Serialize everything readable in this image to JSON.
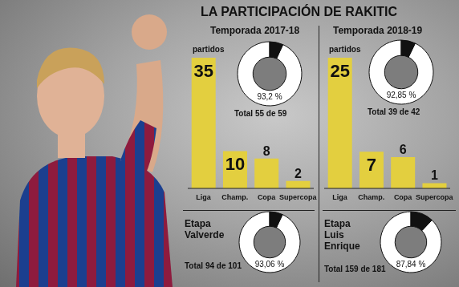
{
  "title": "LA PARTICIPACIÓN DE RAKITIC",
  "chart_data": [
    {
      "type": "bar",
      "title": "Temporada 2017-18",
      "ylabel": "partidos",
      "categories": [
        "Liga",
        "Champ.",
        "Copa",
        "Supercopa"
      ],
      "values": [
        35,
        10,
        8,
        2
      ],
      "color": "#e3cf3f",
      "ylim": [
        0,
        35
      ],
      "data_labels": true,
      "tick_labels": "x"
    },
    {
      "type": "pie",
      "subtitle": "Total 55 de 59",
      "values": [
        93.2,
        6.8
      ],
      "colors": [
        "#ffffff",
        "#111111"
      ],
      "value_labels": [
        "93,2 %",
        null
      ]
    },
    {
      "type": "bar",
      "title": "Temporada 2018-19",
      "ylabel": "partidos",
      "categories": [
        "Liga",
        "Champ.",
        "Copa",
        "Supercopa"
      ],
      "values": [
        25,
        7,
        6,
        1
      ],
      "color": "#e3cf3f",
      "ylim": [
        0,
        25
      ],
      "data_labels": true,
      "tick_labels": "x"
    },
    {
      "type": "pie",
      "subtitle": "Total 39 de 42",
      "values": [
        92.85,
        7.15
      ],
      "colors": [
        "#ffffff",
        "#111111"
      ],
      "value_labels": [
        "92,85 %",
        null
      ]
    },
    {
      "type": "pie",
      "title": "Etapa Valverde",
      "subtitle": "Total 94 de 101",
      "values": [
        93.06,
        6.94
      ],
      "colors": [
        "#ffffff",
        "#111111"
      ],
      "value_labels": [
        "93,06 %",
        null
      ]
    },
    {
      "type": "pie",
      "title": "Etapa Luis Enrique",
      "subtitle": "Total 159 de 181",
      "values": [
        87.84,
        12.16
      ],
      "colors": [
        "#ffffff",
        "#111111"
      ],
      "value_labels": [
        "87,84 %",
        null
      ]
    }
  ]
}
